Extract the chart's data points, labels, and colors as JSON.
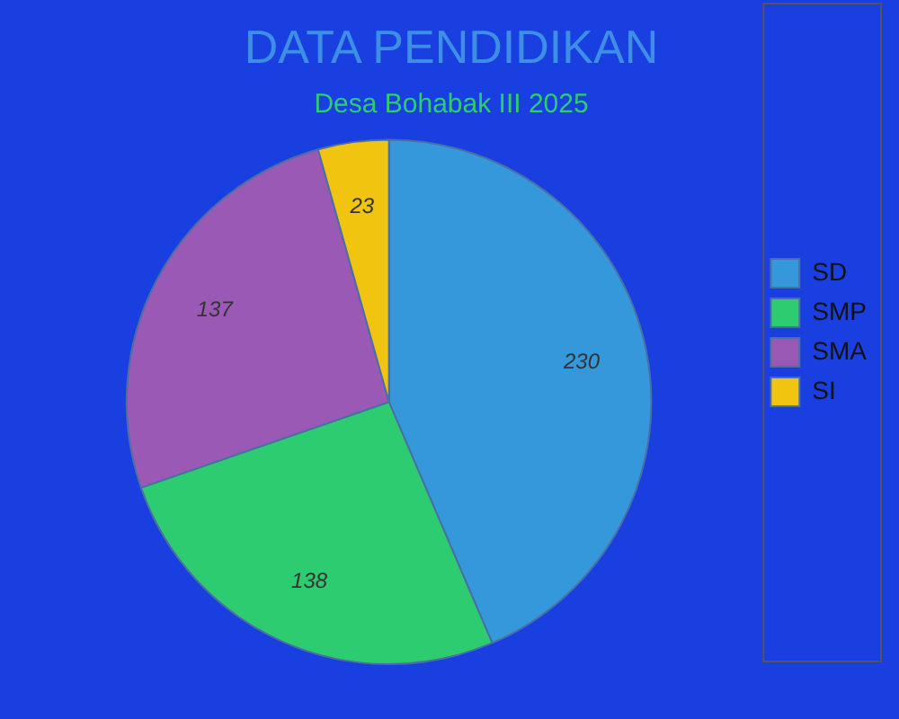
{
  "chart_data": {
    "type": "pie",
    "title": "DATA PENDIDIKAN",
    "subtitle": "Desa Bohabak III 2025",
    "categories": [
      "SD",
      "SMP",
      "SMA",
      "SI"
    ],
    "values": [
      230,
      138,
      137,
      23
    ],
    "colors": [
      "#3498db",
      "#2ecc71",
      "#9b59b6",
      "#f1c40f"
    ],
    "data_labels": true,
    "legend": "right"
  }
}
